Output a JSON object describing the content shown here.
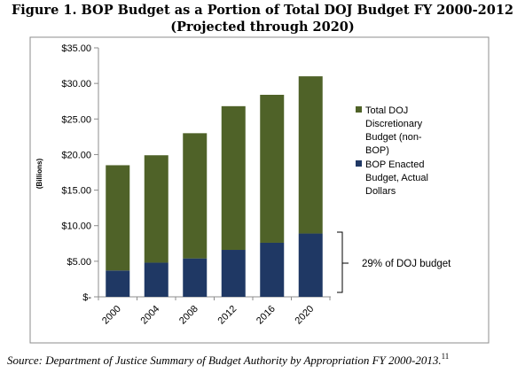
{
  "figure": {
    "title_line1": "Figure 1. BOP Budget as a Portion of Total DOJ Budget FY 2000-2012",
    "title_line2": "(Projected through 2020)",
    "source_text": "Source: Department of Justice Summary of Budget Authority by Appropriation FY 2000-2013.",
    "source_footnote": "11"
  },
  "chart_data": {
    "type": "bar",
    "stacked": true,
    "categories": [
      "2000",
      "2004",
      "2008",
      "2012",
      "2016",
      "2020"
    ],
    "series": [
      {
        "name": "BOP Enacted Budget, Actual Dollars",
        "color": "#1f3864",
        "values": [
          3.7,
          4.8,
          5.4,
          6.6,
          7.6,
          8.9
        ]
      },
      {
        "name": "Total DOJ Discretionary Budget (non-BOP)",
        "color": "#4f6228",
        "values": [
          14.8,
          15.1,
          17.6,
          20.2,
          20.8,
          22.1
        ]
      }
    ],
    "ylabel": "(Billions)",
    "ylim": [
      0,
      35
    ],
    "yticks": [
      0,
      5,
      10,
      15,
      20,
      25,
      30,
      35
    ],
    "ytick_labels": [
      "$-",
      "$5.00",
      "$10.00",
      "$15.00",
      "$20.00",
      "$25.00",
      "$30.00",
      "$35.00"
    ],
    "legend": {
      "placement": "right",
      "entries": [
        {
          "lines": [
            "Total DOJ",
            "Discretionary",
            "Budget (non-",
            "BOP)"
          ],
          "color": "#4f6228"
        },
        {
          "lines": [
            "BOP Enacted",
            "Budget, Actual",
            "Dollars"
          ],
          "color": "#1f3864"
        }
      ]
    },
    "annotation": {
      "text": "29% of DOJ budget"
    },
    "grid": false
  }
}
